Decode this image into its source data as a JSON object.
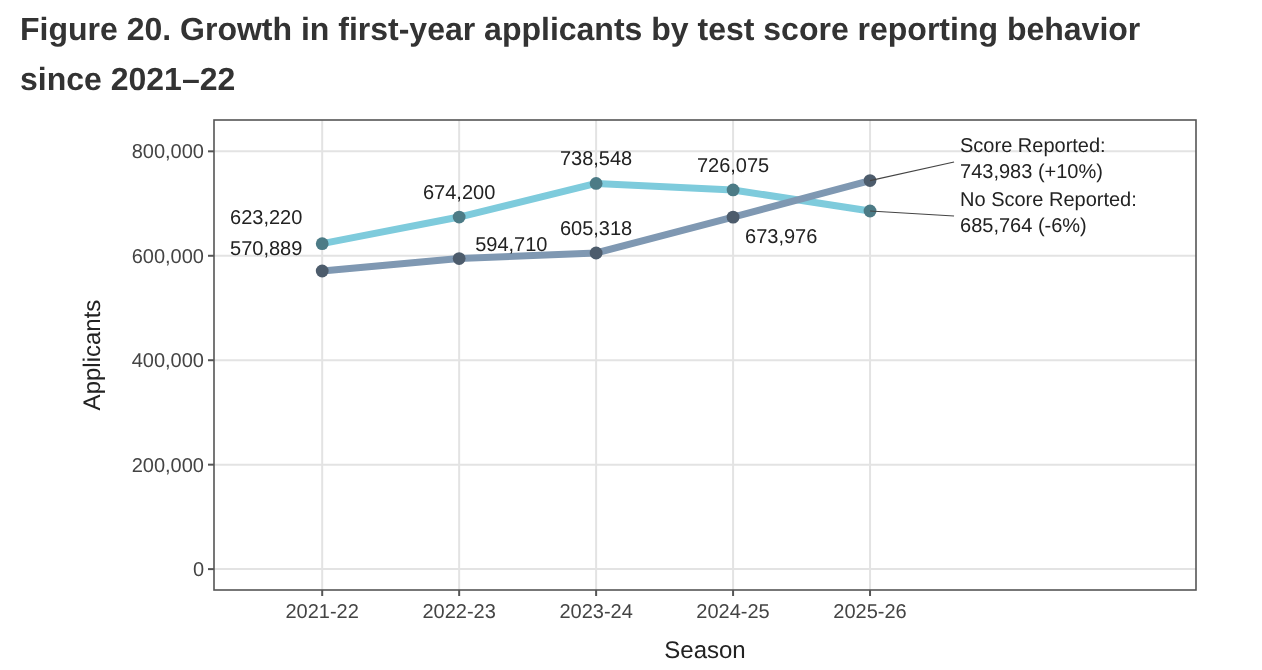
{
  "chart_data": {
    "type": "line",
    "title": "Figure 20. Growth in first-year applicants by test score reporting behavior since 2021–22",
    "xlabel": "Season",
    "ylabel": "Applicants",
    "categories": [
      "2021-22",
      "2022-23",
      "2023-24",
      "2024-25",
      "2025-26"
    ],
    "series": [
      {
        "name": "No Score Reported:",
        "color": "#7ecbdc",
        "values": [
          623220,
          674200,
          738548,
          726075,
          685764
        ],
        "value_labels": [
          "623,220",
          "674,200",
          "738,548",
          "726,075",
          "685,764 (-6%)"
        ]
      },
      {
        "name": "Score Reported:",
        "color": "#7f98b2",
        "values": [
          570889,
          594710,
          605318,
          673976,
          743983
        ],
        "value_labels": [
          "570,889",
          "594,710",
          "605,318",
          "673,976",
          "743,983 (+10%)"
        ]
      }
    ],
    "ylim": [
      -40000,
      860000
    ],
    "yticks": [
      {
        "value": 0,
        "label": "0"
      },
      {
        "value": 200000,
        "label": "200,000"
      },
      {
        "value": 400000,
        "label": "400,000"
      },
      {
        "value": 600000,
        "label": "600,000"
      },
      {
        "value": 800000,
        "label": "800,000"
      }
    ],
    "grid": true,
    "marker": "circle",
    "line_style": "solid"
  }
}
